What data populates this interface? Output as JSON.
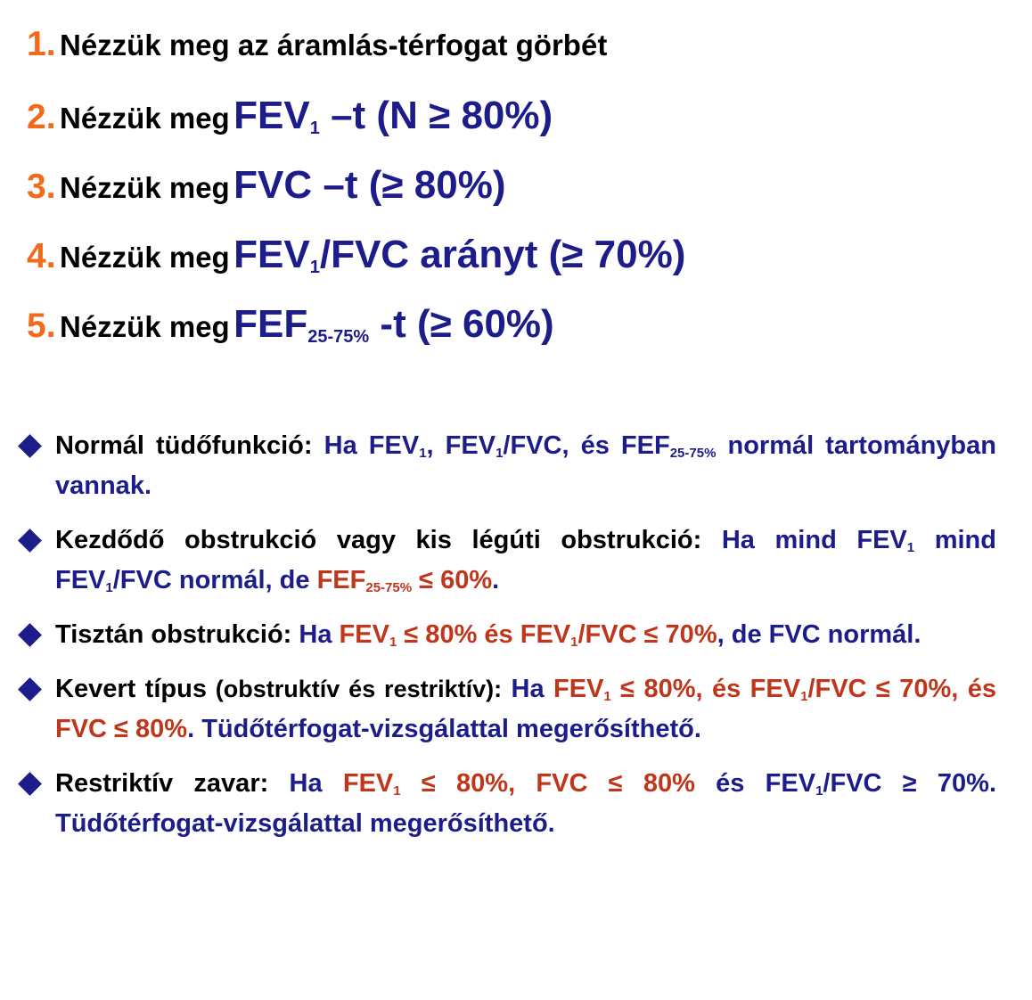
{
  "steps": [
    {
      "num": "1.",
      "lead": "Nézzük meg az áramlás-térfogat görbét"
    },
    {
      "num": "2.",
      "lead": "Nézzük meg",
      "a": "FEV",
      "sub": "1",
      "b": " –t (N ≥ 80%)"
    },
    {
      "num": "3.",
      "lead": "Nézzük meg",
      "a": "FVC –t (≥ 80%)"
    },
    {
      "num": "4.",
      "lead": "Nézzük meg",
      "a": "FEV",
      "sub": "1",
      "b": "/FVC arányt (≥ 70%)"
    },
    {
      "num": "5.",
      "lead": "Nézzük meg",
      "a": "FEF",
      "sub": "25-75%",
      "b": " -t (≥ 60%)"
    }
  ],
  "bullets": {
    "b1": {
      "title": "Normál tüdőfunkció:",
      "t1": " Ha FEV",
      "s1": "1",
      "t2": ", FEV",
      "s2": "1",
      "t3": "/FVC, és FEF",
      "s3": "25-75%",
      "t4": " normál tartományban vannak."
    },
    "b2": {
      "title": "Kezdődő obstrukció vagy kis légúti obstrukció:",
      "t1": " Ha mind FEV",
      "s1": "1",
      "t2": " mind FEV",
      "s2": "1",
      "t3": "/FVC normál, de ",
      "r1": "FEF",
      "rs1": "25-75%",
      "r2": " ≤ 60%",
      "t4": "."
    },
    "b3": {
      "title": "Tisztán obstrukció:",
      "t1": " Ha ",
      "r1": "FEV",
      "rs1": "1",
      "r2": " ≤ 80% és FEV",
      "rs2": "1",
      "r3": "/FVC ≤ 70%",
      "t2": ", de FVC normál."
    },
    "b4": {
      "title": "Kevert típus",
      "title2": " (obstruktív és restriktív):",
      "t1": " Ha ",
      "r1": "FEV",
      "rs1": "1",
      "r2": " ≤ 80%, és FEV",
      "rs2": "1",
      "r3": "/FVC ≤ 70%, és FVC ≤ 80%",
      "t2": ". Tüdőtérfogat-vizsgálattal megerősíthető."
    },
    "b5": {
      "title": "Restriktív zavar:",
      "t1": " Ha ",
      "r1": "FEV",
      "rs1": "1",
      "r2": " ≤ 80%, FVC ≤ 80%",
      "t2": " és FEV",
      "s2": "1",
      "t3": "/FVC ≥ 70%. Tüdőtérfogat-vizsgálattal megerősíthető."
    }
  },
  "colors": {
    "orange": "#f26a1b",
    "navy": "#1c1c8a",
    "red": "#c0361a"
  }
}
